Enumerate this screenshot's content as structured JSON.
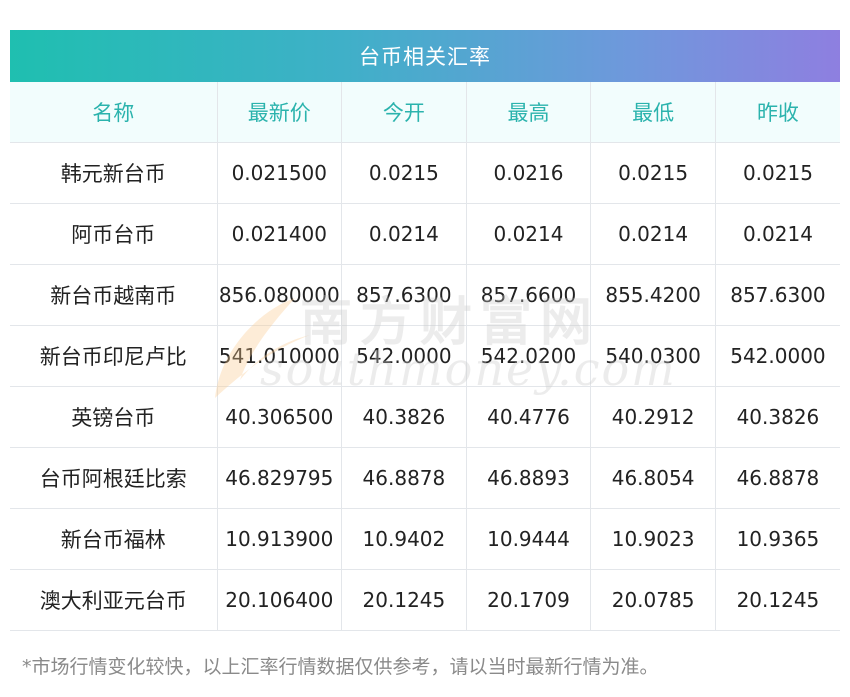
{
  "title": "台币相关汇率",
  "columns": [
    "名称",
    "最新价",
    "今开",
    "最高",
    "最低",
    "昨收"
  ],
  "rows": [
    [
      "韩元新台币",
      "0.021500",
      "0.0215",
      "0.0216",
      "0.0215",
      "0.0215"
    ],
    [
      "阿币台币",
      "0.021400",
      "0.0214",
      "0.0214",
      "0.0214",
      "0.0214"
    ],
    [
      "新台币越南币",
      "856.080000",
      "857.6300",
      "857.6600",
      "855.4200",
      "857.6300"
    ],
    [
      "新台币印尼卢比",
      "541.010000",
      "542.0000",
      "542.0200",
      "540.0300",
      "542.0000"
    ],
    [
      "英镑台币",
      "40.306500",
      "40.3826",
      "40.4776",
      "40.2912",
      "40.3826"
    ],
    [
      "台币阿根廷比索",
      "46.829795",
      "46.8878",
      "46.8893",
      "46.8054",
      "46.8878"
    ],
    [
      "新台币福林",
      "10.913900",
      "10.9402",
      "10.9444",
      "10.9023",
      "10.9365"
    ],
    [
      "澳大利亚元台币",
      "20.106400",
      "20.1245",
      "20.1709",
      "20.0785",
      "20.1245"
    ]
  ],
  "watermark": {
    "cn": "南方财富网",
    "en": "southmoney.com"
  },
  "footnote": "*市场行情变化较快，以上汇率行情数据仅供参考，请以当时最新行情为准。",
  "colors": {
    "header_text": "#2bb3ad",
    "title_gradient_start": "#1fbfb0",
    "title_gradient_end": "#8e7fe0"
  }
}
